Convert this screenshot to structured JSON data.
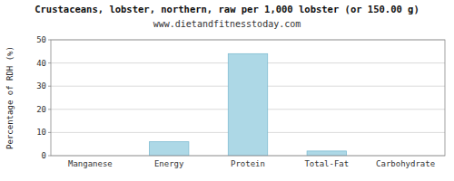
{
  "chart_data": {
    "type": "bar",
    "title": "Crustaceans, lobster, northern, raw per 1,000 lobster (or 150.00 g)",
    "subtitle": "www.dietandfitnesstoday.com",
    "categories": [
      "Manganese",
      "Energy",
      "Protein",
      "Total-Fat",
      "Carbohydrate"
    ],
    "values": [
      0,
      6,
      44,
      2,
      0
    ],
    "color": "#add8e6",
    "ylabel": "Percentage of RDH (%)",
    "ylim": [
      0,
      50
    ],
    "yticks": [
      0,
      10,
      20,
      30,
      40,
      50
    ],
    "grid": true
  }
}
